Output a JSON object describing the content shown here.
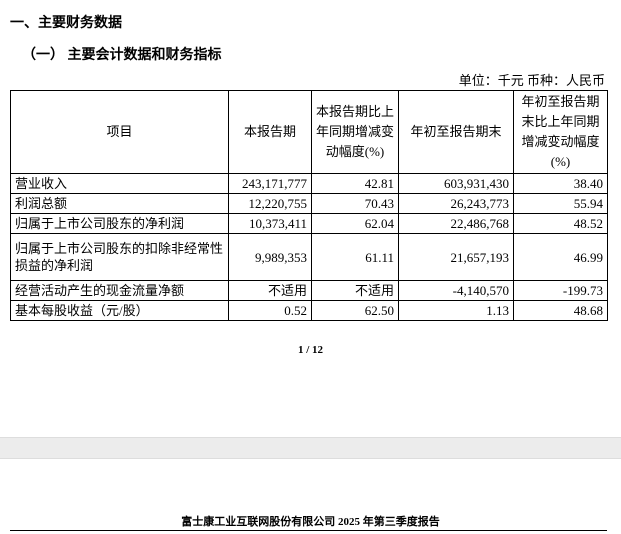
{
  "section_title": "一、主要财务数据",
  "subsection_title": "（一）  主要会计数据和财务指标",
  "unit_line": "单位：千元   币种：人民币",
  "table": {
    "headers": [
      "项目",
      "本报告期",
      "本报告期比上年同期增减变动幅度(%)",
      "年初至报告期末",
      "年初至报告期末比上年同期增减变动幅度(%)"
    ],
    "rows": [
      [
        "营业收入",
        "243,171,777",
        "42.81",
        "603,931,430",
        "38.40"
      ],
      [
        "利润总额",
        "12,220,755",
        "70.43",
        "26,243,773",
        "55.94"
      ],
      [
        "归属于上市公司股东的净利润",
        "10,373,411",
        "62.04",
        "22,486,768",
        "48.52"
      ],
      [
        "归属于上市公司股东的扣除非经常性损益的净利润",
        "9,989,353",
        "61.11",
        "21,657,193",
        "46.99"
      ],
      [
        "经营活动产生的现金流量净额",
        "不适用",
        "不适用",
        "-4,140,570",
        "-199.73"
      ],
      [
        "基本每股收益（元/股）",
        "0.52",
        "62.50",
        "1.13",
        "48.68"
      ]
    ]
  },
  "page_number": "1 / 12",
  "footer": "富士康工业互联网股份有限公司  2025 年第三季度报告"
}
